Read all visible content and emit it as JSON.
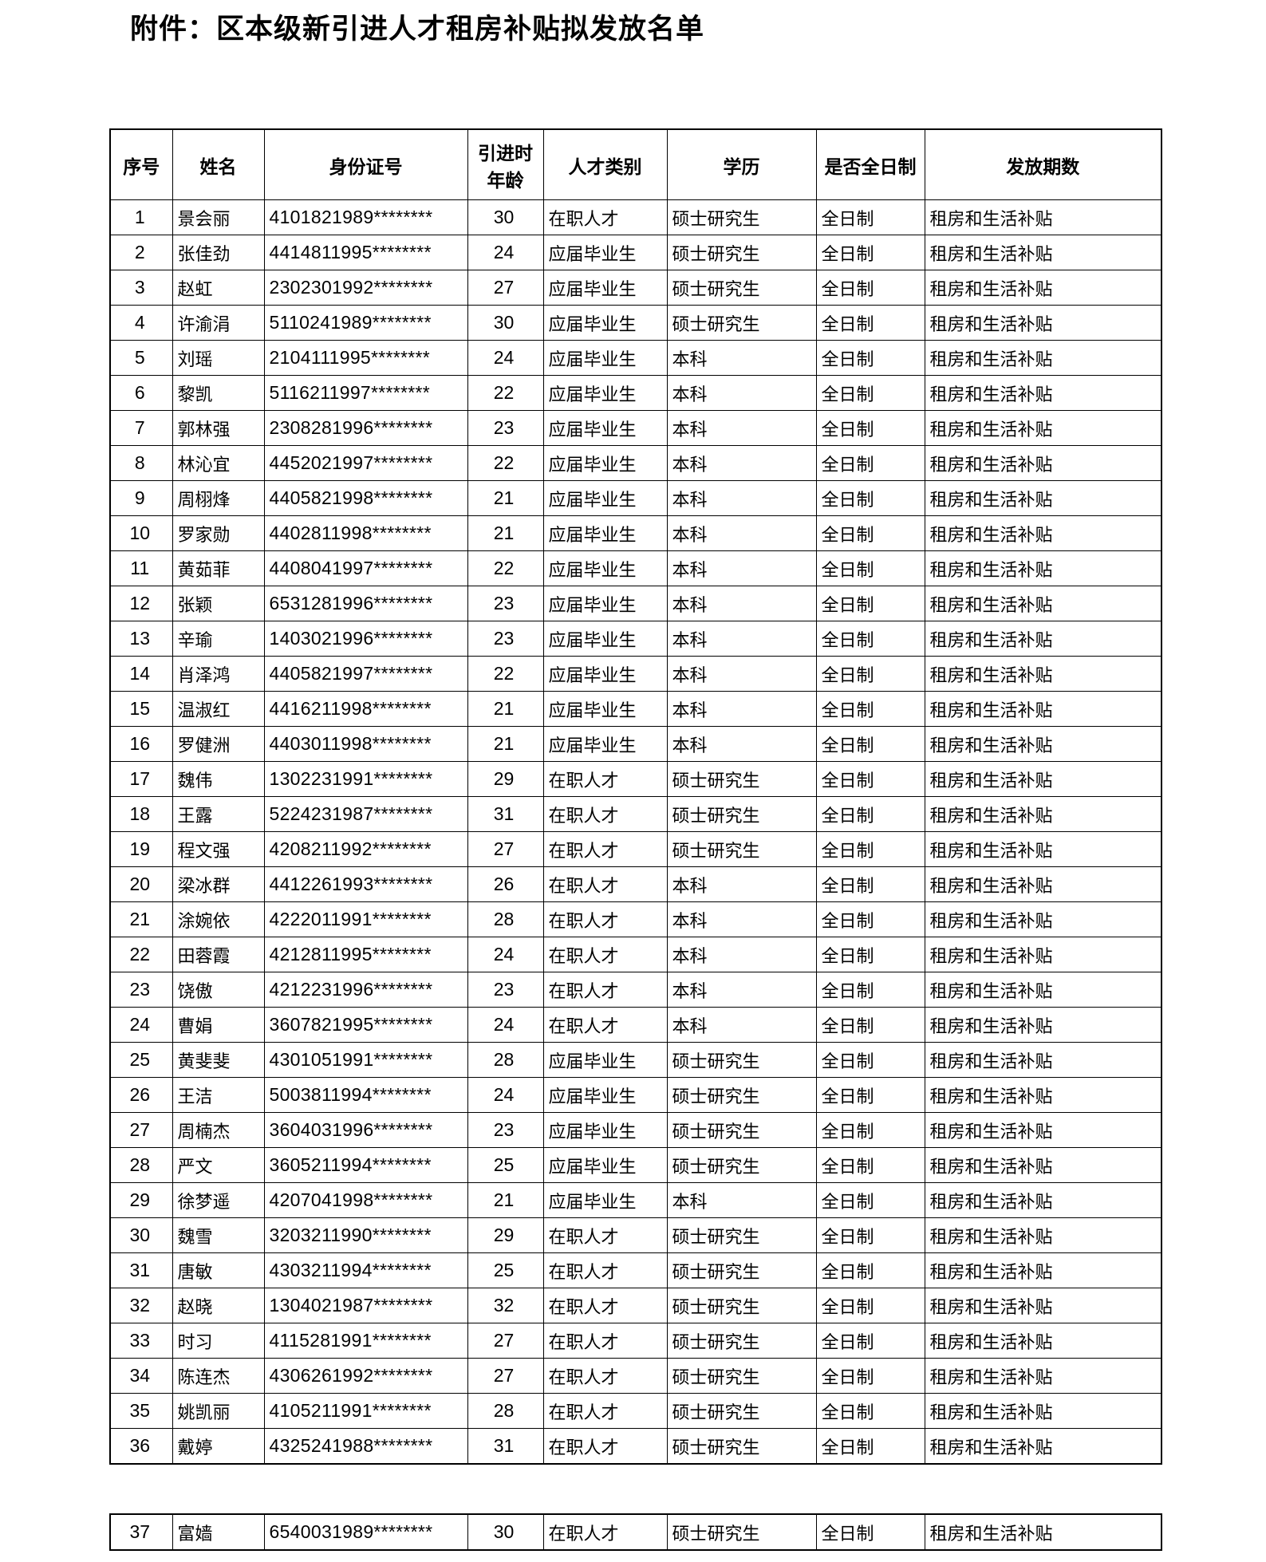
{
  "document": {
    "title": "附件：区本级新引进人才租房补贴拟发放名单"
  },
  "table": {
    "headers": [
      "序号",
      "姓名",
      "身份证号",
      "引进时\n年龄",
      "人才类别",
      "学历",
      "是否全日制",
      "发放期数"
    ],
    "column_keys": [
      "index",
      "name",
      "id-number",
      "age-at-introduction",
      "talent-category",
      "education",
      "full-time",
      "issuance-period"
    ],
    "rows_on_first_page": 36,
    "rows": [
      [
        "1",
        "景会丽",
        "4101821989********",
        "30",
        "在职人才",
        "硕士研究生",
        "全日制",
        "租房和生活补贴"
      ],
      [
        "2",
        "张佳劲",
        "4414811995********",
        "24",
        "应届毕业生",
        "硕士研究生",
        "全日制",
        "租房和生活补贴"
      ],
      [
        "3",
        "赵虹",
        "2302301992********",
        "27",
        "应届毕业生",
        "硕士研究生",
        "全日制",
        "租房和生活补贴"
      ],
      [
        "4",
        "许渝涓",
        "5110241989********",
        "30",
        "应届毕业生",
        "硕士研究生",
        "全日制",
        "租房和生活补贴"
      ],
      [
        "5",
        "刘瑶",
        "2104111995********",
        "24",
        "应届毕业生",
        "本科",
        "全日制",
        "租房和生活补贴"
      ],
      [
        "6",
        "黎凯",
        "5116211997********",
        "22",
        "应届毕业生",
        "本科",
        "全日制",
        "租房和生活补贴"
      ],
      [
        "7",
        "郭林强",
        "2308281996********",
        "23",
        "应届毕业生",
        "本科",
        "全日制",
        "租房和生活补贴"
      ],
      [
        "8",
        "林沁宜",
        "4452021997********",
        "22",
        "应届毕业生",
        "本科",
        "全日制",
        "租房和生活补贴"
      ],
      [
        "9",
        "周栩烽",
        "4405821998********",
        "21",
        "应届毕业生",
        "本科",
        "全日制",
        "租房和生活补贴"
      ],
      [
        "10",
        "罗家勋",
        "4402811998********",
        "21",
        "应届毕业生",
        "本科",
        "全日制",
        "租房和生活补贴"
      ],
      [
        "11",
        "黄茹菲",
        "4408041997********",
        "22",
        "应届毕业生",
        "本科",
        "全日制",
        "租房和生活补贴"
      ],
      [
        "12",
        "张颖",
        "6531281996********",
        "23",
        "应届毕业生",
        "本科",
        "全日制",
        "租房和生活补贴"
      ],
      [
        "13",
        "辛瑜",
        "1403021996********",
        "23",
        "应届毕业生",
        "本科",
        "全日制",
        "租房和生活补贴"
      ],
      [
        "14",
        "肖泽鸿",
        "4405821997********",
        "22",
        "应届毕业生",
        "本科",
        "全日制",
        "租房和生活补贴"
      ],
      [
        "15",
        "温淑红",
        "4416211998********",
        "21",
        "应届毕业生",
        "本科",
        "全日制",
        "租房和生活补贴"
      ],
      [
        "16",
        "罗健洲",
        "4403011998********",
        "21",
        "应届毕业生",
        "本科",
        "全日制",
        "租房和生活补贴"
      ],
      [
        "17",
        "魏伟",
        "1302231991********",
        "29",
        "在职人才",
        "硕士研究生",
        "全日制",
        "租房和生活补贴"
      ],
      [
        "18",
        "王露",
        "5224231987********",
        "31",
        "在职人才",
        "硕士研究生",
        "全日制",
        "租房和生活补贴"
      ],
      [
        "19",
        "程文强",
        "4208211992********",
        "27",
        "在职人才",
        "硕士研究生",
        "全日制",
        "租房和生活补贴"
      ],
      [
        "20",
        "梁冰群",
        "4412261993********",
        "26",
        "在职人才",
        "本科",
        "全日制",
        "租房和生活补贴"
      ],
      [
        "21",
        "涂婉依",
        "4222011991********",
        "28",
        "在职人才",
        "本科",
        "全日制",
        "租房和生活补贴"
      ],
      [
        "22",
        "田蓉霞",
        "4212811995********",
        "24",
        "在职人才",
        "本科",
        "全日制",
        "租房和生活补贴"
      ],
      [
        "23",
        "饶傲",
        "4212231996********",
        "23",
        "在职人才",
        "本科",
        "全日制",
        "租房和生活补贴"
      ],
      [
        "24",
        "曹娟",
        "3607821995********",
        "24",
        "在职人才",
        "本科",
        "全日制",
        "租房和生活补贴"
      ],
      [
        "25",
        "黄斐斐",
        "4301051991********",
        "28",
        "应届毕业生",
        "硕士研究生",
        "全日制",
        "租房和生活补贴"
      ],
      [
        "26",
        "王洁",
        "5003811994********",
        "24",
        "应届毕业生",
        "硕士研究生",
        "全日制",
        "租房和生活补贴"
      ],
      [
        "27",
        "周楠杰",
        "3604031996********",
        "23",
        "应届毕业生",
        "硕士研究生",
        "全日制",
        "租房和生活补贴"
      ],
      [
        "28",
        "严文",
        "3605211994********",
        "25",
        "应届毕业生",
        "硕士研究生",
        "全日制",
        "租房和生活补贴"
      ],
      [
        "29",
        "徐梦遥",
        "4207041998********",
        "21",
        "应届毕业生",
        "本科",
        "全日制",
        "租房和生活补贴"
      ],
      [
        "30",
        "魏雪",
        "3203211990********",
        "29",
        "在职人才",
        "硕士研究生",
        "全日制",
        "租房和生活补贴"
      ],
      [
        "31",
        "唐敏",
        "4303211994********",
        "25",
        "在职人才",
        "硕士研究生",
        "全日制",
        "租房和生活补贴"
      ],
      [
        "32",
        "赵晓",
        "1304021987********",
        "32",
        "在职人才",
        "硕士研究生",
        "全日制",
        "租房和生活补贴"
      ],
      [
        "33",
        "时习",
        "4115281991********",
        "27",
        "在职人才",
        "硕士研究生",
        "全日制",
        "租房和生活补贴"
      ],
      [
        "34",
        "陈连杰",
        "4306261992********",
        "27",
        "在职人才",
        "硕士研究生",
        "全日制",
        "租房和生活补贴"
      ],
      [
        "35",
        "姚凯丽",
        "4105211991********",
        "28",
        "在职人才",
        "硕士研究生",
        "全日制",
        "租房和生活补贴"
      ],
      [
        "36",
        "戴婷",
        "4325241988********",
        "31",
        "在职人才",
        "硕士研究生",
        "全日制",
        "租房和生活补贴"
      ],
      [
        "37",
        "富嫱",
        "6540031989********",
        "30",
        "在职人才",
        "硕士研究生",
        "全日制",
        "租房和生活补贴"
      ]
    ]
  }
}
